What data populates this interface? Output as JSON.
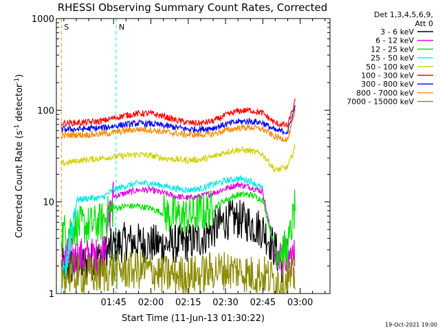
{
  "chart_data": {
    "type": "line",
    "title": "RHESSI Observing Summary Count Rates, Corrected",
    "xlabel": "Start Time (11-Jun-13 01:30:22)",
    "ylabel_main": "Corrected Count Rate (s",
    "ylabel_sup1": "-1",
    "ylabel_mid": " detector",
    "ylabel_sup2": "-1",
    "ylabel_end": ")",
    "y_scale": "log",
    "ylim": [
      1,
      1000
    ],
    "y_ticks": [
      {
        "value": 1,
        "label": "1"
      },
      {
        "value": 10,
        "label": "10"
      },
      {
        "value": 100,
        "label": "100"
      },
      {
        "value": 1000,
        "label": "1000"
      }
    ],
    "xlim": [
      -8,
      102
    ],
    "x_units": "minutes after 01:30",
    "x_ticks": [
      {
        "value": 15,
        "label": "01:45"
      },
      {
        "value": 30,
        "label": "02:00"
      },
      {
        "value": 45,
        "label": "02:15"
      },
      {
        "value": 60,
        "label": "02:30"
      },
      {
        "value": 75,
        "label": "02:45"
      },
      {
        "value": 90,
        "label": "03:00"
      }
    ],
    "legend_position": "right",
    "legend_header": [
      "Det 1,3,4,5,6,9,",
      "Att 0"
    ],
    "series": [
      {
        "name": "3 - 6 keV",
        "color": "#000000",
        "x": [
          -6,
          0,
          5,
          10,
          15,
          20,
          25,
          30,
          35,
          40,
          45,
          50,
          55,
          60,
          65,
          70,
          75,
          80,
          83
        ],
        "y": [
          2.0,
          2.0,
          2.2,
          2.5,
          3.3,
          3.7,
          3.6,
          3.5,
          3.4,
          3.5,
          3.6,
          4.0,
          5.0,
          6.3,
          6.5,
          5.8,
          5.0,
          3.0,
          2.0
        ]
      },
      {
        "name": "6 - 12 keV",
        "color": "#e000e0",
        "x": [
          -6,
          0,
          5,
          10,
          15,
          20,
          25,
          30,
          35,
          40,
          45,
          50,
          55,
          60,
          65,
          70,
          75,
          80,
          85,
          88
        ],
        "y": [
          2.5,
          2.5,
          2.5,
          2.5,
          11.5,
          12.5,
          13.5,
          13.5,
          12.5,
          11.5,
          11.0,
          11.5,
          12.5,
          14.0,
          15.5,
          14.5,
          13.0,
          2.5,
          2.5,
          2.5
        ]
      },
      {
        "name": "12 - 25 keV",
        "color": "#00e000",
        "x": [
          -6,
          0,
          5,
          10,
          15,
          20,
          25,
          30,
          35,
          40,
          45,
          50,
          55,
          60,
          65,
          70,
          75,
          80,
          85,
          88
        ],
        "y": [
          4.5,
          5.5,
          5.5,
          6.0,
          8.5,
          9.0,
          9.0,
          8.5,
          7.5,
          7.0,
          7.0,
          7.5,
          8.5,
          10.5,
          12.0,
          12.0,
          10.5,
          3.0,
          3.0,
          9.0
        ]
      },
      {
        "name": "25 - 50 keV",
        "color": "#00e8e8",
        "x": [
          -6,
          0,
          5,
          10,
          15,
          20,
          25,
          30,
          35,
          40,
          45,
          50,
          55,
          60,
          65,
          70,
          75
        ],
        "y": [
          1.0,
          10.5,
          11.0,
          11.0,
          13.5,
          15.0,
          16.0,
          16.0,
          15.0,
          14.0,
          13.5,
          14.0,
          15.5,
          17.0,
          18.0,
          17.0,
          14.0
        ]
      },
      {
        "name": "50 - 100 keV",
        "color": "#d0d000",
        "x": [
          -6,
          0,
          5,
          10,
          15,
          20,
          25,
          30,
          35,
          40,
          45,
          50,
          55,
          60,
          65,
          70,
          75,
          80,
          85,
          88
        ],
        "y": [
          26,
          28,
          29,
          30,
          31,
          32,
          33,
          32,
          30,
          29,
          28.5,
          29,
          31,
          35,
          37,
          36,
          33,
          22,
          24,
          40
        ]
      },
      {
        "name": "100 - 300 keV",
        "color": "#ff0000",
        "x": [
          -6,
          0,
          5,
          10,
          15,
          20,
          25,
          30,
          35,
          40,
          45,
          50,
          55,
          60,
          65,
          70,
          75,
          80,
          85,
          88
        ],
        "y": [
          72,
          73,
          74,
          76,
          82,
          88,
          92,
          92,
          86,
          78,
          73,
          72,
          76,
          88,
          98,
          100,
          93,
          72,
          68,
          125
        ]
      },
      {
        "name": "300 - 800 keV",
        "color": "#0000ff",
        "x": [
          -6,
          0,
          5,
          10,
          15,
          20,
          25,
          30,
          35,
          40,
          45,
          50,
          55,
          60,
          65,
          70,
          75,
          80,
          85,
          88
        ],
        "y": [
          62,
          62,
          63,
          64,
          67,
          70,
          72,
          71,
          68,
          65,
          62,
          62,
          64,
          70,
          75,
          76,
          73,
          60,
          58,
          110
        ]
      },
      {
        "name": "800 - 7000 keV",
        "color": "#ff8800",
        "x": [
          -6,
          0,
          5,
          10,
          15,
          20,
          25,
          30,
          35,
          40,
          45,
          50,
          55,
          60,
          65,
          70,
          75,
          80,
          85,
          88
        ],
        "y": [
          53,
          54,
          54,
          55,
          57,
          60,
          62,
          61,
          58,
          56,
          54,
          54,
          55,
          60,
          64,
          65,
          62,
          51,
          48,
          95
        ]
      },
      {
        "name": "7000 - 15000 keV",
        "color": "#8b8b00",
        "x": [
          -6,
          0,
          5,
          10,
          15,
          20,
          25,
          30,
          35,
          40,
          45,
          50,
          55,
          60,
          65,
          70,
          75,
          80,
          85,
          88
        ],
        "y": [
          1.6,
          1.6,
          1.6,
          1.6,
          1.8,
          1.8,
          1.8,
          1.8,
          1.6,
          1.6,
          1.6,
          1.6,
          1.8,
          1.8,
          1.8,
          1.6,
          1.6,
          1.4,
          1.4,
          1.6
        ]
      }
    ],
    "annotations": [
      {
        "text": "S",
        "x": -6,
        "color": "#ff8800"
      },
      {
        "text": "N",
        "x": 16,
        "color": "#00e8e8"
      }
    ],
    "footer_date": "19-Oct-2021 19:00"
  }
}
